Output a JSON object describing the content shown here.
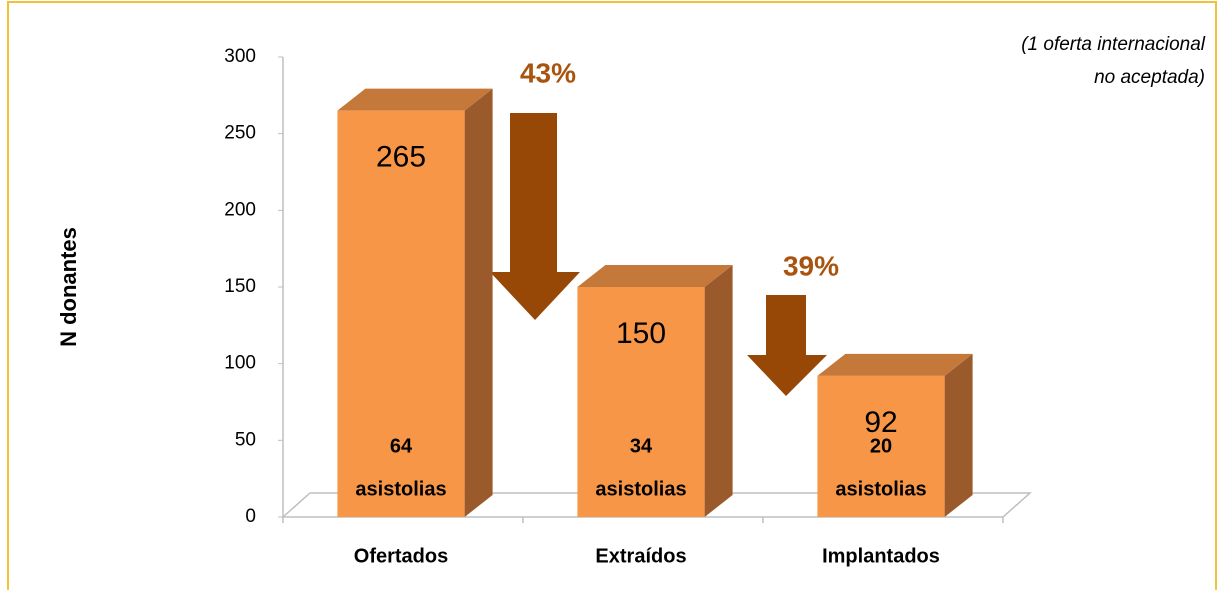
{
  "chart_data": {
    "type": "bar3d",
    "y_label": "N donantes",
    "note": [
      "(1 oferta internacional",
      "no aceptada)"
    ],
    "categories": [
      "Ofertados",
      "Extraídos",
      "Implantados"
    ],
    "values": [
      265,
      150,
      92
    ],
    "sublabels": [
      [
        "64",
        "asistolias"
      ],
      [
        "34",
        "asistolias"
      ],
      [
        "20",
        "asistolias"
      ]
    ],
    "annotations": [
      "43%",
      "39%"
    ],
    "color": "#f79646",
    "ylim": [
      0,
      300
    ],
    "yticks": [
      0,
      50,
      100,
      150,
      200,
      250,
      300
    ],
    "grid": false
  }
}
